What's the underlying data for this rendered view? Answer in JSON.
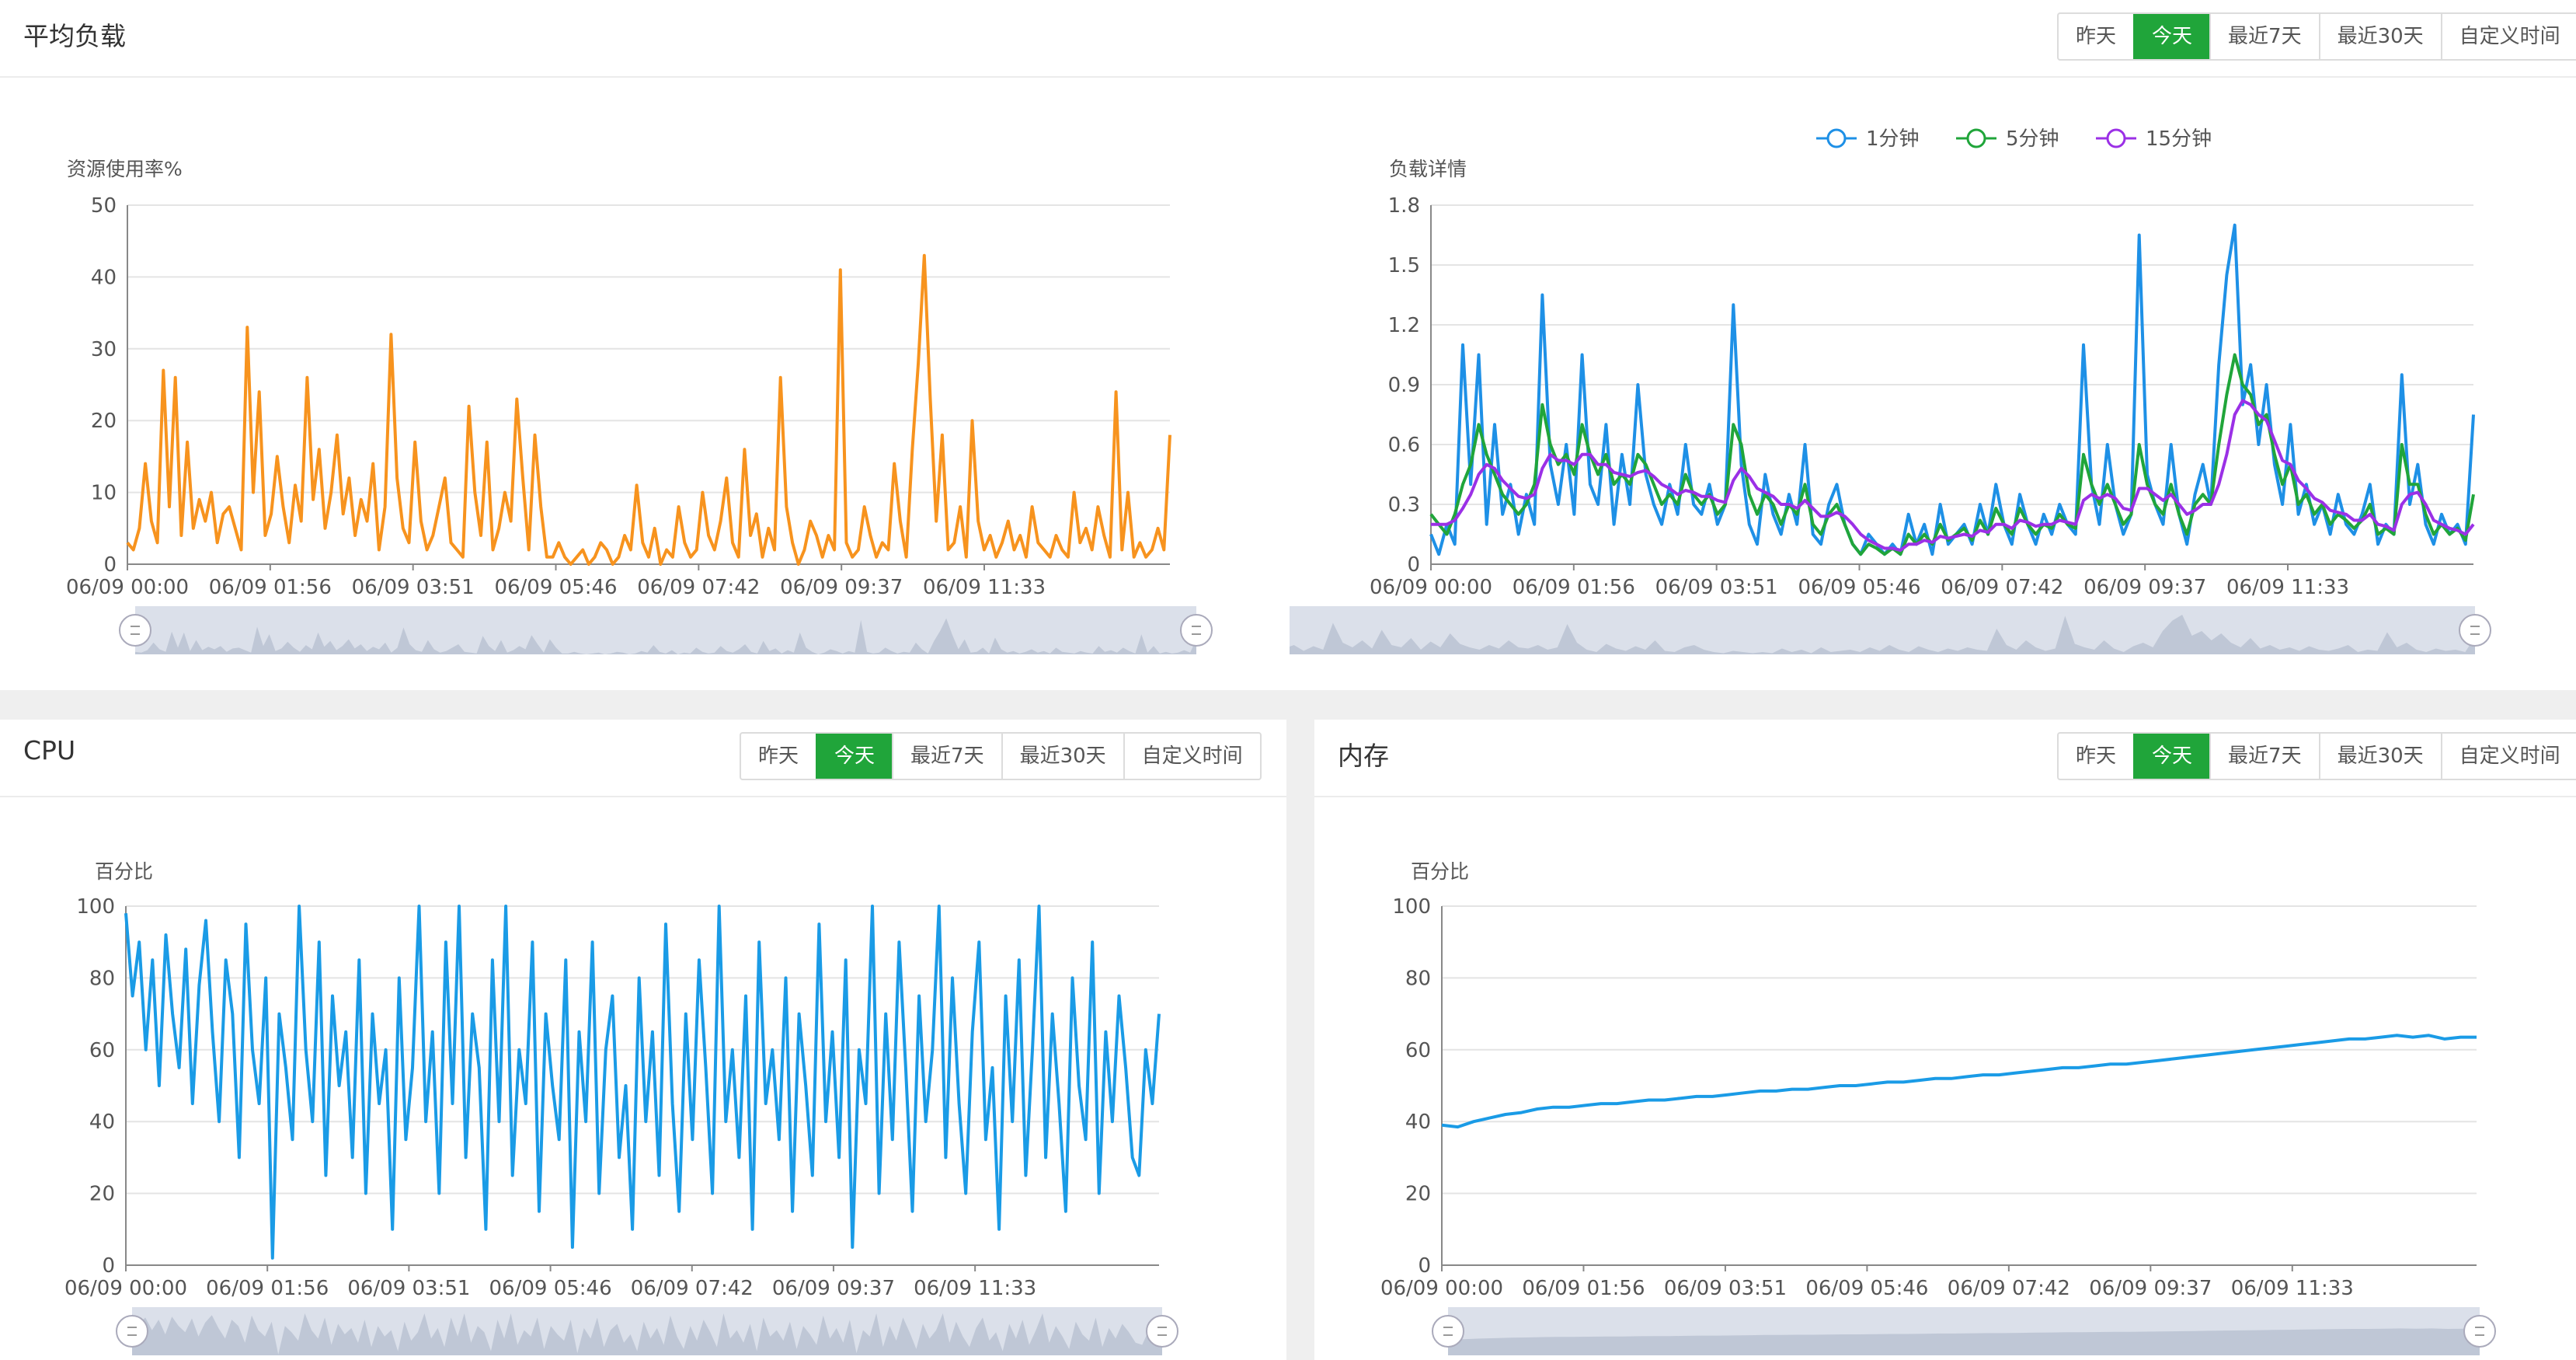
{
  "load_panel": {
    "title": "平均负载",
    "range_buttons": [
      "昨天",
      "今天",
      "最近7天",
      "最近30天",
      "自定义时间"
    ],
    "active_range": "今天"
  },
  "cpu_panel": {
    "title": "CPU",
    "range_buttons": [
      "昨天",
      "今天",
      "最近7天",
      "最近30天",
      "自定义时间"
    ],
    "active_range": "今天"
  },
  "memory_panel": {
    "title": "内存",
    "range_buttons": [
      "昨天",
      "今天",
      "最近7天",
      "最近30天",
      "自定义时间"
    ],
    "active_range": "今天"
  },
  "colors": {
    "active_button": "#20a53a",
    "resource_line": "#f7931e",
    "load_1min": "#1e90e6",
    "load_5min": "#20a53a",
    "load_15min": "#9b30e6",
    "cpu_line": "#1a9be6",
    "memory_line": "#1a9be6",
    "zoom_fill": "#d5dbe6"
  },
  "chart_data": [
    {
      "id": "resource",
      "type": "line",
      "title": "",
      "ylabel": "资源使用率%",
      "ylim": [
        0,
        50
      ],
      "yticks": [
        0,
        10,
        20,
        30,
        40,
        50
      ],
      "xtick_labels": [
        "06/09 00:00",
        "06/09 01:56",
        "06/09 03:51",
        "06/09 05:46",
        "06/09 07:42",
        "06/09 09:37",
        "06/09 11:33"
      ],
      "grid": true,
      "has_zoom_slider": true,
      "series": [
        {
          "name": "",
          "values": [
            3,
            2,
            5,
            14,
            6,
            3,
            27,
            8,
            26,
            4,
            17,
            5,
            9,
            6,
            10,
            3,
            7,
            8,
            5,
            2,
            33,
            10,
            24,
            4,
            7,
            15,
            8,
            3,
            11,
            6,
            26,
            9,
            16,
            5,
            10,
            18,
            7,
            12,
            4,
            9,
            6,
            14,
            2,
            8,
            32,
            12,
            5,
            3,
            17,
            6,
            2,
            4,
            8,
            12,
            3,
            2,
            1,
            22,
            10,
            4,
            17,
            2,
            5,
            10,
            6,
            23,
            12,
            2,
            18,
            8,
            1,
            1,
            3,
            1,
            0,
            1,
            2,
            0,
            1,
            3,
            2,
            0,
            1,
            4,
            2,
            11,
            3,
            1,
            5,
            0,
            2,
            1,
            8,
            3,
            1,
            2,
            10,
            4,
            2,
            6,
            12,
            3,
            1,
            16,
            4,
            7,
            1,
            5,
            2,
            26,
            8,
            3,
            0,
            2,
            6,
            4,
            1,
            4,
            2,
            41,
            3,
            1,
            2,
            8,
            4,
            1,
            3,
            2,
            14,
            6,
            1,
            16,
            28,
            43,
            23,
            6,
            18,
            2,
            3,
            8,
            1,
            20,
            6,
            2,
            4,
            1,
            3,
            6,
            2,
            4,
            1,
            8,
            3,
            2,
            1,
            4,
            2,
            1,
            10,
            3,
            5,
            2,
            8,
            4,
            1,
            24,
            2,
            10,
            1,
            3,
            1,
            2,
            5,
            2,
            18
          ]
        }
      ]
    },
    {
      "id": "load",
      "type": "line",
      "title": "",
      "ylabel": "负载详情",
      "ylim": [
        0,
        1.8
      ],
      "yticks": [
        0,
        0.3,
        0.6,
        0.9,
        1.2,
        1.5,
        1.8
      ],
      "xtick_labels": [
        "06/09 00:00",
        "06/09 01:56",
        "06/09 03:51",
        "06/09 05:46",
        "06/09 07:42",
        "06/09 09:37",
        "06/09 11:33"
      ],
      "grid": true,
      "legend": "top-center",
      "has_zoom_slider": true,
      "series": [
        {
          "name": "1分钟",
          "values": [
            0.15,
            0.05,
            0.2,
            0.1,
            1.1,
            0.4,
            1.05,
            0.2,
            0.7,
            0.25,
            0.4,
            0.15,
            0.35,
            0.2,
            1.35,
            0.5,
            0.3,
            0.6,
            0.25,
            1.05,
            0.4,
            0.3,
            0.7,
            0.2,
            0.55,
            0.3,
            0.9,
            0.45,
            0.3,
            0.2,
            0.4,
            0.25,
            0.6,
            0.3,
            0.25,
            0.4,
            0.2,
            0.3,
            1.3,
            0.5,
            0.2,
            0.1,
            0.45,
            0.25,
            0.15,
            0.35,
            0.2,
            0.6,
            0.15,
            0.1,
            0.3,
            0.4,
            0.2,
            0.1,
            0.05,
            0.15,
            0.1,
            0.05,
            0.1,
            0.05,
            0.25,
            0.1,
            0.2,
            0.05,
            0.3,
            0.1,
            0.15,
            0.2,
            0.1,
            0.3,
            0.15,
            0.4,
            0.2,
            0.1,
            0.35,
            0.2,
            0.1,
            0.25,
            0.15,
            0.3,
            0.2,
            0.15,
            1.1,
            0.4,
            0.2,
            0.6,
            0.3,
            0.15,
            0.25,
            1.65,
            0.45,
            0.3,
            0.2,
            0.6,
            0.25,
            0.1,
            0.35,
            0.5,
            0.3,
            1.0,
            1.45,
            1.7,
            0.8,
            1.0,
            0.6,
            0.9,
            0.5,
            0.3,
            0.7,
            0.25,
            0.4,
            0.2,
            0.3,
            0.15,
            0.35,
            0.2,
            0.15,
            0.25,
            0.4,
            0.1,
            0.2,
            0.15,
            0.95,
            0.3,
            0.5,
            0.2,
            0.1,
            0.25,
            0.15,
            0.2,
            0.1,
            0.75
          ]
        },
        {
          "name": "5分钟",
          "values": [
            0.25,
            0.2,
            0.15,
            0.25,
            0.4,
            0.5,
            0.7,
            0.55,
            0.45,
            0.35,
            0.3,
            0.25,
            0.3,
            0.4,
            0.8,
            0.6,
            0.5,
            0.55,
            0.45,
            0.7,
            0.55,
            0.45,
            0.55,
            0.4,
            0.45,
            0.4,
            0.55,
            0.5,
            0.4,
            0.3,
            0.35,
            0.3,
            0.45,
            0.35,
            0.3,
            0.35,
            0.25,
            0.3,
            0.7,
            0.6,
            0.35,
            0.25,
            0.35,
            0.3,
            0.2,
            0.3,
            0.25,
            0.4,
            0.2,
            0.15,
            0.25,
            0.3,
            0.2,
            0.1,
            0.05,
            0.1,
            0.08,
            0.05,
            0.08,
            0.05,
            0.15,
            0.1,
            0.15,
            0.1,
            0.2,
            0.12,
            0.15,
            0.18,
            0.12,
            0.22,
            0.15,
            0.28,
            0.2,
            0.15,
            0.28,
            0.2,
            0.15,
            0.2,
            0.18,
            0.25,
            0.2,
            0.18,
            0.55,
            0.4,
            0.3,
            0.4,
            0.3,
            0.2,
            0.25,
            0.6,
            0.4,
            0.3,
            0.25,
            0.4,
            0.25,
            0.15,
            0.3,
            0.35,
            0.3,
            0.6,
            0.85,
            1.05,
            0.9,
            0.85,
            0.7,
            0.75,
            0.55,
            0.4,
            0.5,
            0.3,
            0.35,
            0.25,
            0.3,
            0.2,
            0.25,
            0.22,
            0.18,
            0.22,
            0.3,
            0.15,
            0.18,
            0.15,
            0.6,
            0.4,
            0.4,
            0.25,
            0.15,
            0.2,
            0.15,
            0.18,
            0.12,
            0.35
          ]
        },
        {
          "name": "15分钟",
          "values": [
            0.2,
            0.2,
            0.2,
            0.22,
            0.28,
            0.35,
            0.45,
            0.5,
            0.48,
            0.42,
            0.38,
            0.34,
            0.33,
            0.35,
            0.48,
            0.55,
            0.52,
            0.52,
            0.5,
            0.55,
            0.55,
            0.5,
            0.5,
            0.46,
            0.45,
            0.44,
            0.46,
            0.47,
            0.44,
            0.4,
            0.38,
            0.35,
            0.37,
            0.36,
            0.34,
            0.34,
            0.32,
            0.31,
            0.42,
            0.48,
            0.44,
            0.38,
            0.36,
            0.34,
            0.3,
            0.3,
            0.28,
            0.32,
            0.28,
            0.24,
            0.24,
            0.26,
            0.24,
            0.2,
            0.15,
            0.12,
            0.1,
            0.08,
            0.08,
            0.07,
            0.1,
            0.1,
            0.12,
            0.11,
            0.14,
            0.13,
            0.14,
            0.15,
            0.14,
            0.17,
            0.16,
            0.2,
            0.2,
            0.18,
            0.22,
            0.21,
            0.19,
            0.2,
            0.2,
            0.22,
            0.21,
            0.2,
            0.32,
            0.35,
            0.33,
            0.35,
            0.33,
            0.28,
            0.27,
            0.38,
            0.38,
            0.35,
            0.32,
            0.35,
            0.3,
            0.25,
            0.27,
            0.3,
            0.3,
            0.4,
            0.55,
            0.75,
            0.82,
            0.8,
            0.75,
            0.72,
            0.62,
            0.52,
            0.5,
            0.42,
            0.38,
            0.33,
            0.31,
            0.27,
            0.26,
            0.25,
            0.22,
            0.22,
            0.25,
            0.2,
            0.19,
            0.17,
            0.3,
            0.35,
            0.36,
            0.3,
            0.22,
            0.2,
            0.18,
            0.17,
            0.15,
            0.2
          ]
        }
      ]
    },
    {
      "id": "cpu",
      "type": "line",
      "title": "",
      "ylabel": "百分比",
      "ylim": [
        0,
        100
      ],
      "yticks": [
        0,
        20,
        40,
        60,
        80,
        100
      ],
      "xtick_labels": [
        "06/09 00:00",
        "06/09 01:56",
        "06/09 03:51",
        "06/09 05:46",
        "06/09 07:42",
        "06/09 09:37",
        "06/09 11:33"
      ],
      "grid": true,
      "has_zoom_slider": true,
      "series": [
        {
          "name": "",
          "values": [
            98,
            75,
            90,
            60,
            85,
            50,
            92,
            70,
            55,
            88,
            45,
            78,
            96,
            65,
            40,
            85,
            70,
            30,
            95,
            60,
            45,
            80,
            2,
            70,
            55,
            35,
            100,
            60,
            40,
            90,
            25,
            75,
            50,
            65,
            30,
            85,
            20,
            70,
            45,
            60,
            10,
            80,
            35,
            55,
            100,
            40,
            65,
            20,
            90,
            45,
            100,
            30,
            70,
            55,
            10,
            85,
            40,
            100,
            25,
            60,
            45,
            90,
            15,
            70,
            50,
            35,
            85,
            5,
            65,
            40,
            90,
            20,
            60,
            75,
            30,
            50,
            10,
            80,
            40,
            65,
            25,
            95,
            45,
            15,
            70,
            35,
            85,
            55,
            20,
            100,
            40,
            60,
            30,
            75,
            10,
            90,
            45,
            60,
            35,
            80,
            15,
            70,
            50,
            25,
            95,
            40,
            65,
            30,
            85,
            5,
            60,
            45,
            100,
            20,
            70,
            35,
            90,
            55,
            15,
            75,
            40,
            60,
            100,
            30,
            80,
            45,
            20,
            65,
            90,
            35,
            55,
            10,
            75,
            40,
            85,
            25,
            60,
            100,
            30,
            70,
            45,
            15,
            80,
            50,
            35,
            90,
            20,
            65,
            40,
            75,
            55,
            30,
            25,
            60,
            45,
            70
          ]
        }
      ]
    },
    {
      "id": "memory",
      "type": "line",
      "title": "",
      "ylabel": "百分比",
      "ylim": [
        0,
        100
      ],
      "yticks": [
        0,
        20,
        40,
        60,
        80,
        100
      ],
      "xtick_labels": [
        "06/09 00:00",
        "06/09 01:56",
        "06/09 03:51",
        "06/09 05:46",
        "06/09 07:42",
        "06/09 09:37",
        "06/09 11:33"
      ],
      "grid": true,
      "has_zoom_slider": true,
      "series": [
        {
          "name": "",
          "values": [
            39,
            38.5,
            40,
            41,
            42,
            42.5,
            43.5,
            44,
            44,
            44.5,
            45,
            45,
            45.5,
            46,
            46,
            46.5,
            47,
            47,
            47.5,
            48,
            48.5,
            48.5,
            49,
            49,
            49.5,
            50,
            50,
            50.5,
            51,
            51,
            51.5,
            52,
            52,
            52.5,
            53,
            53,
            53.5,
            54,
            54.5,
            55,
            55,
            55.5,
            56,
            56,
            56.5,
            57,
            57.5,
            58,
            58.5,
            59,
            59.5,
            60,
            60.5,
            61,
            61.5,
            62,
            62.5,
            63,
            63,
            63.5,
            64,
            63.5,
            64,
            63,
            63.5,
            63.5
          ]
        }
      ]
    }
  ]
}
